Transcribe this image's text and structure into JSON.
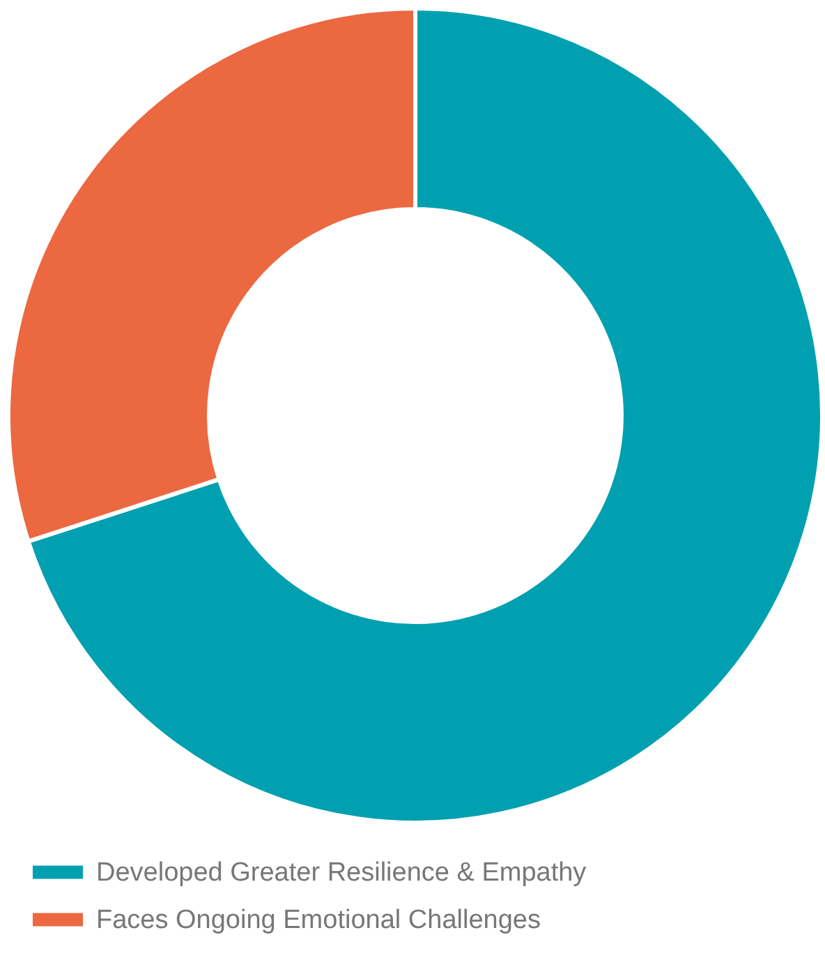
{
  "chart_data": {
    "type": "donut",
    "categories": [
      "Developed Greater Resilience & Empathy",
      "Faces Ongoing Emotional Challenges"
    ],
    "values": [
      70,
      30
    ],
    "colors": [
      "#00a0b0",
      "#eb6841"
    ],
    "legend": "bottom"
  }
}
